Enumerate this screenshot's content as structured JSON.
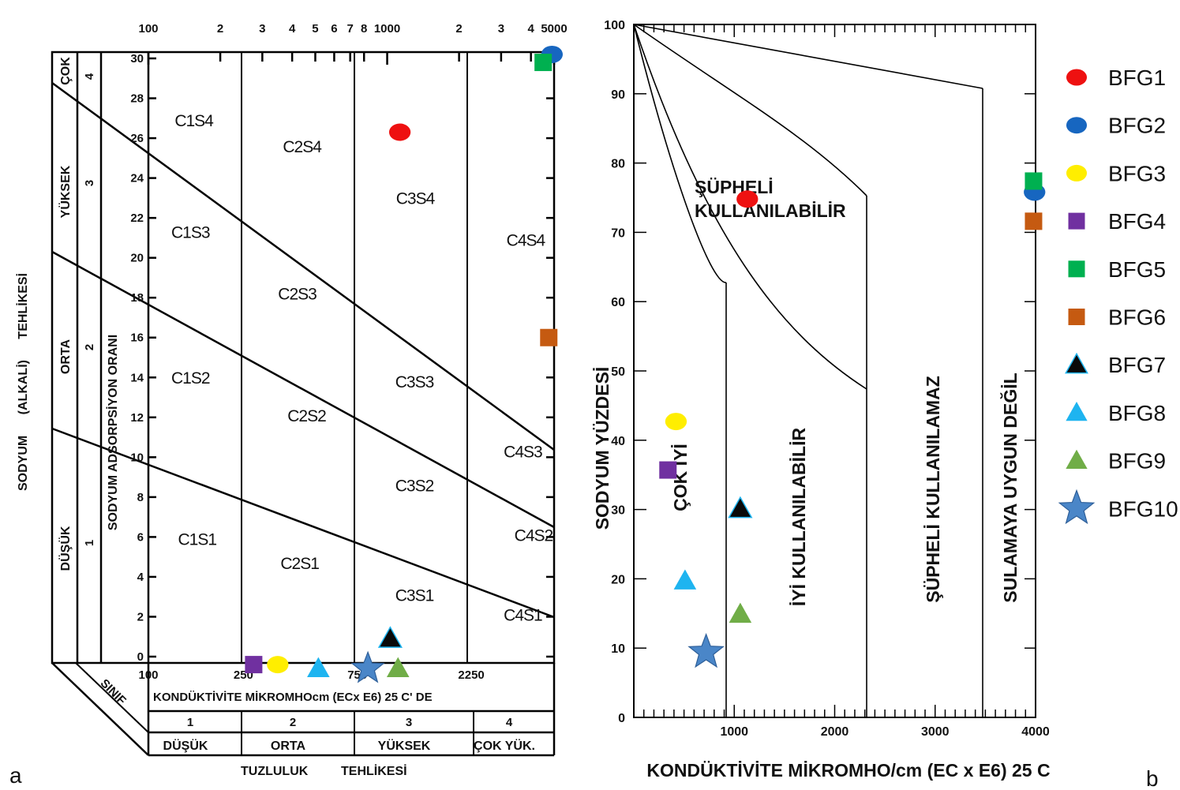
{
  "panel_labels": {
    "a": "a",
    "b": "b"
  },
  "legend": [
    {
      "name": "BFG1",
      "shape": "circle",
      "color": "#ee1111"
    },
    {
      "name": "BFG2",
      "shape": "circle",
      "color": "#1766c0"
    },
    {
      "name": "BFG3",
      "shape": "circle",
      "color": "#ffee00"
    },
    {
      "name": "BFG4",
      "shape": "square",
      "color": "#7030a0"
    },
    {
      "name": "BFG5",
      "shape": "square",
      "color": "#00b050"
    },
    {
      "name": "BFG6",
      "shape": "square",
      "color": "#c55a11"
    },
    {
      "name": "BFG7",
      "shape": "triangle",
      "color": "#0a0a0a"
    },
    {
      "name": "BFG8",
      "shape": "triangle",
      "color": "#1eb4f0"
    },
    {
      "name": "BFG9",
      "shape": "triangle",
      "color": "#70ad47"
    },
    {
      "name": "BFG10",
      "shape": "star",
      "color": "#4a86c8"
    }
  ],
  "chart_data": [
    {
      "type": "scatter",
      "panel": "a",
      "title": "",
      "ylabel_outer": "SODYUM (ALKALİ) TEHLİKESİ",
      "ylabel_inner": "SODYUM ADSORPSİYON ORANI",
      "xlabel": "KONDÜKTİVİTE MİKROMHOcm (ECx E6) 25 C' DE",
      "x_scale": "log",
      "x_top_ticks": [
        {
          "v": 100,
          "t": "100"
        },
        {
          "v": 200,
          "t": "2"
        },
        {
          "v": 300,
          "t": "3"
        },
        {
          "v": 400,
          "t": "4"
        },
        {
          "v": 500,
          "t": "5"
        },
        {
          "v": 600,
          "t": "6"
        },
        {
          "v": 700,
          "t": "7"
        },
        {
          "v": 800,
          "t": "8"
        },
        {
          "v": 1000,
          "t": "1000"
        },
        {
          "v": 2000,
          "t": "2"
        },
        {
          "v": 3000,
          "t": "3"
        },
        {
          "v": 4000,
          "t": "4"
        },
        {
          "v": 5000,
          "t": "5000"
        }
      ],
      "x_bottom_ticks": [
        {
          "v": 100,
          "t": "100"
        },
        {
          "v": 250,
          "t": "250"
        },
        {
          "v": 750,
          "t": "750"
        },
        {
          "v": 2250,
          "t": "2250"
        }
      ],
      "y_ticks": [
        0,
        2,
        4,
        6,
        8,
        10,
        12,
        14,
        16,
        18,
        20,
        22,
        24,
        26,
        28,
        30
      ],
      "xlim": [
        100,
        5000
      ],
      "ylim": [
        0,
        30
      ],
      "hazard_classes": [
        {
          "name": "DÜŞÜK",
          "num": "1"
        },
        {
          "name": "ORTA",
          "num": "2"
        },
        {
          "name": "YÜKSEK",
          "num": "3"
        },
        {
          "name": "ÇOK",
          "num": "4"
        }
      ],
      "salinity_classes": [
        {
          "name": "DÜŞÜK",
          "num": "1"
        },
        {
          "name": "ORTA",
          "num": "2"
        },
        {
          "name": "YÜKSEK",
          "num": "3"
        },
        {
          "name": "ÇOK YÜK.",
          "num": "4"
        }
      ],
      "sinif_label": "SINIF",
      "salinity_label_1": "TUZLULUK",
      "salinity_label_2": "TEHLİKESİ",
      "regions": [
        {
          "label": "C1S4",
          "x": 155,
          "y": 26.6
        },
        {
          "label": "C2S4",
          "x": 440,
          "y": 25.3
        },
        {
          "label": "C3S4",
          "x": 1310,
          "y": 22.7
        },
        {
          "label": "C4S4",
          "x": 3800,
          "y": 20.6
        },
        {
          "label": "C1S3",
          "x": 150,
          "y": 21.0
        },
        {
          "label": "C2S3",
          "x": 420,
          "y": 17.9
        },
        {
          "label": "C3S3",
          "x": 1300,
          "y": 13.5
        },
        {
          "label": "C4S3",
          "x": 3700,
          "y": 10.0
        },
        {
          "label": "C1S2",
          "x": 150,
          "y": 13.7
        },
        {
          "label": "C2S2",
          "x": 460,
          "y": 11.8
        },
        {
          "label": "C3S2",
          "x": 1300,
          "y": 8.3
        },
        {
          "label": "C4S2",
          "x": 4100,
          "y": 5.8
        },
        {
          "label": "C1S1",
          "x": 160,
          "y": 5.6
        },
        {
          "label": "C2S1",
          "x": 430,
          "y": 4.4
        },
        {
          "label": "C3S1",
          "x": 1300,
          "y": 2.8
        },
        {
          "label": "C4S1",
          "x": 3700,
          "y": 1.8
        }
      ],
      "series": [
        {
          "name": "BFG1",
          "x": [
            1130
          ],
          "y": [
            26.3
          ]
        },
        {
          "name": "BFG2",
          "x": [
            4900
          ],
          "y": [
            30.2
          ]
        },
        {
          "name": "BFG3",
          "x": [
            348
          ],
          "y": [
            -0.4
          ]
        },
        {
          "name": "BFG4",
          "x": [
            276
          ],
          "y": [
            -0.4
          ]
        },
        {
          "name": "BFG5",
          "x": [
            4500
          ],
          "y": [
            29.8
          ]
        },
        {
          "name": "BFG6",
          "x": [
            4750
          ],
          "y": [
            16.0
          ]
        },
        {
          "name": "BFG7",
          "x": [
            1030
          ],
          "y": [
            0.9
          ]
        },
        {
          "name": "BFG8",
          "x": [
            515
          ],
          "y": [
            -0.6
          ]
        },
        {
          "name": "BFG9",
          "x": [
            1110
          ],
          "y": [
            -0.6
          ]
        },
        {
          "name": "BFG10",
          "x": [
            830
          ],
          "y": [
            -0.6
          ]
        }
      ]
    },
    {
      "type": "scatter",
      "panel": "b",
      "title": "",
      "xlabel": "KONDÜKTİVİTE MİKROMHO/cm (EC x E6) 25 C",
      "ylabel": "SODYUM YÜZDESİ",
      "xlim": [
        0,
        4000
      ],
      "ylim": [
        0,
        100
      ],
      "x_ticks": [
        1000,
        2000,
        3000,
        4000
      ],
      "y_ticks": [
        0,
        10,
        20,
        30,
        40,
        50,
        60,
        70,
        80,
        90,
        100
      ],
      "regions": [
        {
          "label": "ÇOK İYİ",
          "orientation": "vertical"
        },
        {
          "label": "İYİ KULLANILABİLİR",
          "orientation": "vertical"
        },
        {
          "label": "ŞÜPHELİ KULLANILABİLİR",
          "orientation": "horizontal"
        },
        {
          "label": "ŞÜPHELİ KULLANILAMAZ",
          "orientation": "vertical"
        },
        {
          "label": "SULAMAYA UYGUN DEĞİL",
          "orientation": "vertical"
        }
      ],
      "series": [
        {
          "name": "BFG1",
          "x": [
            1130
          ],
          "y": [
            74.8
          ]
        },
        {
          "name": "BFG2",
          "x": [
            3990
          ],
          "y": [
            75.8
          ]
        },
        {
          "name": "BFG3",
          "x": [
            420
          ],
          "y": [
            42.7
          ]
        },
        {
          "name": "BFG4",
          "x": [
            340
          ],
          "y": [
            35.7
          ]
        },
        {
          "name": "BFG5",
          "x": [
            3980
          ],
          "y": [
            77.4
          ]
        },
        {
          "name": "BFG6",
          "x": [
            3980
          ],
          "y": [
            71.6
          ]
        },
        {
          "name": "BFG7",
          "x": [
            1060
          ],
          "y": [
            30.1
          ]
        },
        {
          "name": "BFG8",
          "x": [
            510
          ],
          "y": [
            19.7
          ]
        },
        {
          "name": "BFG9",
          "x": [
            1060
          ],
          "y": [
            14.9
          ]
        },
        {
          "name": "BFG10",
          "x": [
            720
          ],
          "y": [
            9.4
          ]
        }
      ]
    }
  ]
}
